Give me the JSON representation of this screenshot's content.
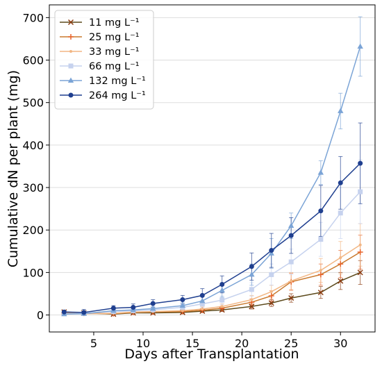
{
  "chart_data": {
    "type": "line",
    "xlabel": "Days after Transplantation",
    "ylabel": "Cumulative dN per plant (mg)",
    "xlim": [
      0.5,
      33.5
    ],
    "ylim": [
      -40,
      730
    ],
    "xticks": [
      5,
      10,
      15,
      20,
      25,
      30
    ],
    "yticks": [
      0,
      100,
      200,
      300,
      400,
      500,
      600,
      700
    ],
    "grid": "horizontal",
    "legend_position": "top-left",
    "x": [
      2,
      4,
      7,
      9,
      11,
      14,
      16,
      18,
      21,
      23,
      25,
      28,
      30,
      32
    ],
    "series": [
      {
        "name": "11 mg L⁻¹",
        "marker": "x",
        "color": "#8B3A0F",
        "line_color": "#5C4A1C",
        "values": [
          7,
          5,
          2,
          5,
          5,
          6,
          9,
          12,
          20,
          28,
          40,
          53,
          80,
          100
        ],
        "errors": [
          3,
          3,
          2,
          2,
          2,
          3,
          3,
          4,
          6,
          8,
          10,
          14,
          20,
          28
        ]
      },
      {
        "name": "25 mg L⁻¹",
        "marker": "+",
        "color": "#E8632A",
        "line_color": "#C97A2E",
        "values": [
          5,
          4,
          3,
          6,
          7,
          8,
          11,
          16,
          30,
          45,
          78,
          95,
          120,
          148
        ],
        "errors": [
          3,
          3,
          2,
          3,
          3,
          3,
          4,
          5,
          8,
          12,
          20,
          25,
          32,
          40
        ]
      },
      {
        "name": "33 mg L⁻¹",
        "marker": ".",
        "color": "#F2B683",
        "line_color": "#F2B683",
        "values": [
          4,
          3,
          4,
          7,
          8,
          10,
          14,
          20,
          36,
          55,
          80,
          105,
          135,
          165
        ],
        "errors": [
          3,
          3,
          2,
          3,
          3,
          4,
          5,
          6,
          10,
          15,
          20,
          28,
          38,
          50
        ]
      },
      {
        "name": "66 mg L⁻¹",
        "marker": "s",
        "color": "#C6D2EE",
        "line_color": "#C6D2EE",
        "values": [
          3,
          4,
          8,
          10,
          12,
          18,
          26,
          35,
          60,
          95,
          125,
          178,
          240,
          290
        ],
        "errors": [
          3,
          3,
          3,
          4,
          4,
          6,
          8,
          10,
          16,
          25,
          30,
          40,
          60,
          75
        ]
      },
      {
        "name": "132 mg L⁻¹",
        "marker": "^",
        "color": "#7BA4D6",
        "line_color": "#7BA4D6",
        "values": [
          2,
          3,
          10,
          12,
          15,
          22,
          33,
          58,
          95,
          145,
          210,
          335,
          480,
          632
        ],
        "errors": [
          3,
          3,
          4,
          4,
          5,
          7,
          10,
          16,
          25,
          35,
          30,
          28,
          42,
          70
        ]
      },
      {
        "name": "264 mg L⁻¹",
        "marker": "o",
        "color": "#1F3F8F",
        "line_color": "#1F3F8F",
        "values": [
          7,
          6,
          16,
          18,
          27,
          36,
          46,
          72,
          114,
          152,
          187,
          245,
          311,
          357
        ],
        "errors": [
          3,
          7,
          6,
          8,
          9,
          10,
          16,
          20,
          32,
          40,
          42,
          60,
          62,
          95
        ]
      }
    ]
  }
}
